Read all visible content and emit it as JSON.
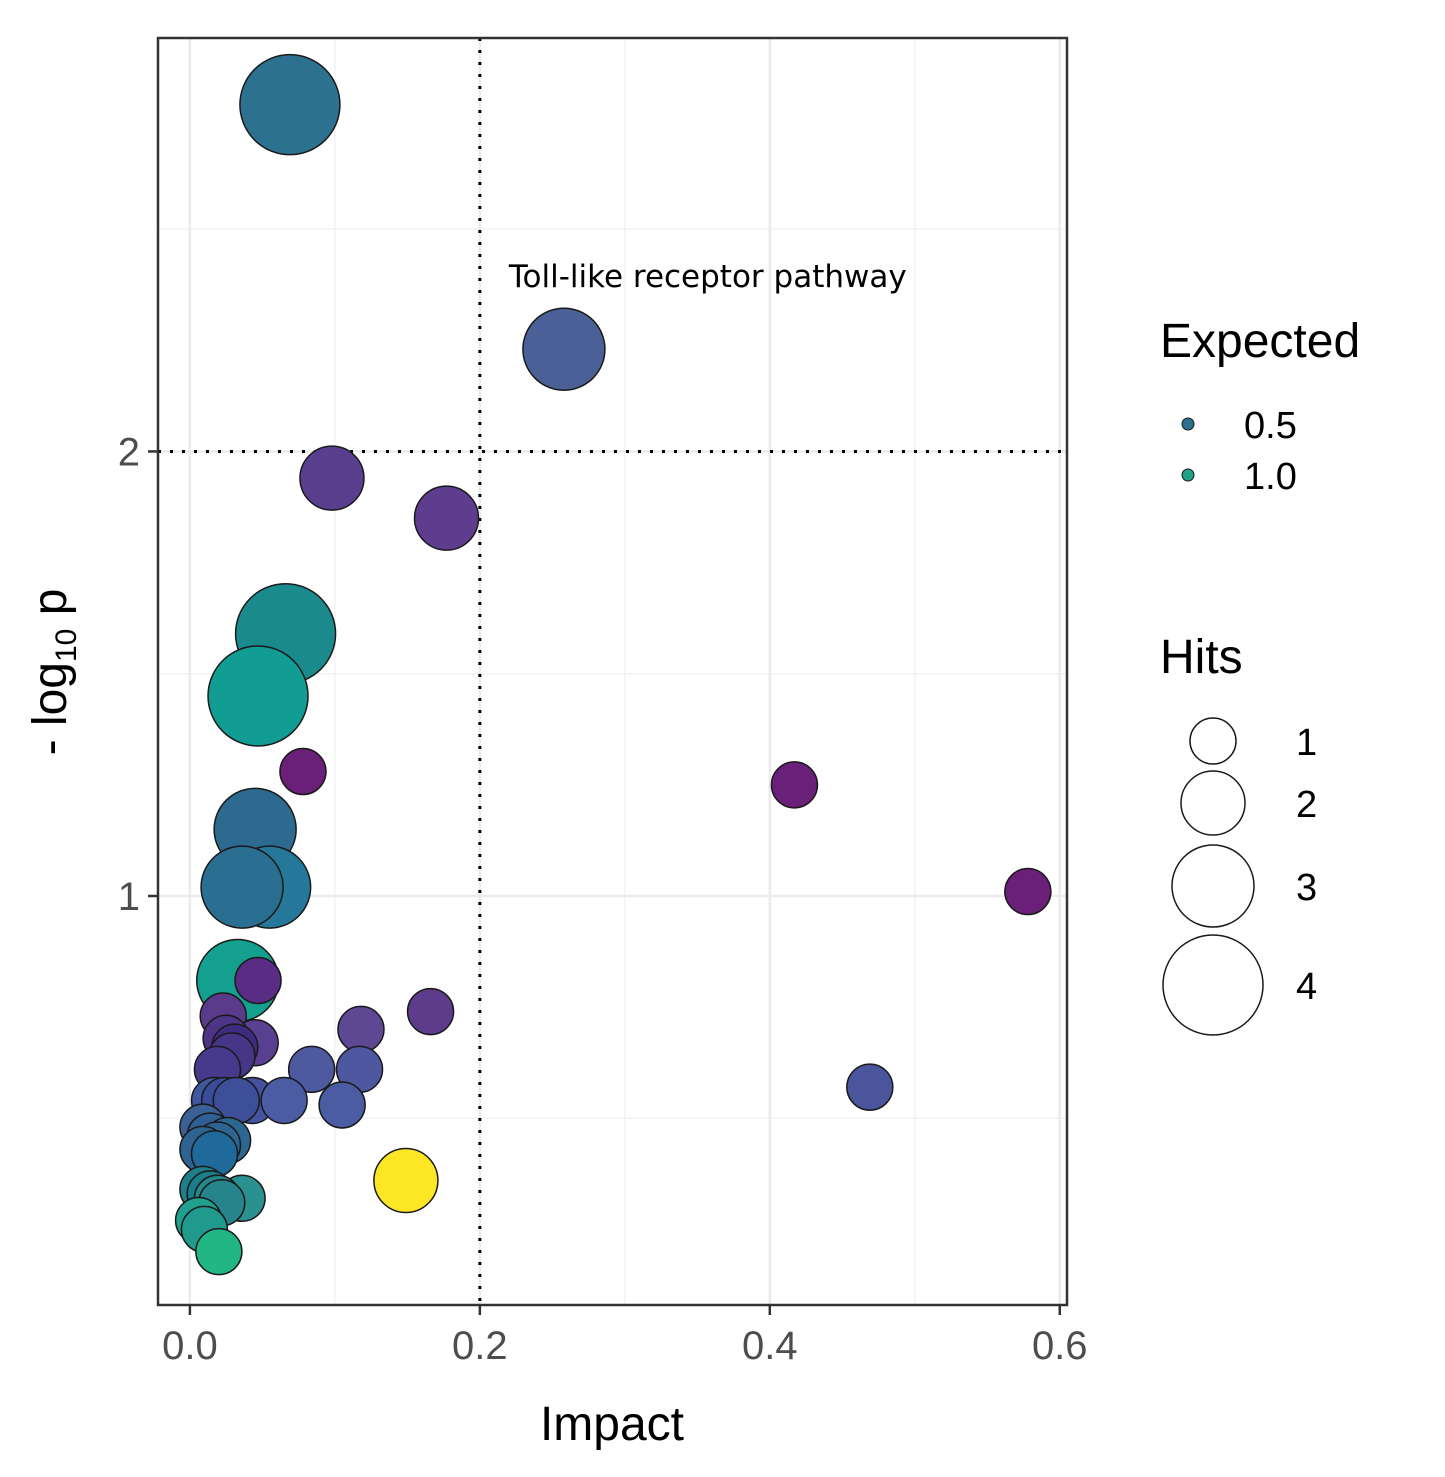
{
  "chart_data": {
    "type": "scatter",
    "xlabel": "Impact",
    "ylabel": {
      "prefix": "- log",
      "subscript": "10",
      "suffix": " p"
    },
    "xlim": [
      -0.022,
      0.605
    ],
    "ylim": [
      0.08,
      2.93
    ],
    "x_ticks": [
      0,
      0.2,
      0.4,
      0.6
    ],
    "x_tick_labels": [
      "0.0",
      "0.2",
      "0.4",
      "0.6"
    ],
    "x_minor_ticks": [
      0.1,
      0.3,
      0.5
    ],
    "y_ticks": [
      1,
      2
    ],
    "y_tick_labels": [
      "1",
      "2"
    ],
    "y_minor_ticks": [
      0.5,
      1.5,
      2.5
    ],
    "grid": true,
    "reference_lines": {
      "x": 0.2,
      "y": 2
    },
    "annotation": {
      "text": "Toll-like receptor pathway",
      "x": 0.22,
      "y": 2.37
    },
    "legend": {
      "position": "right",
      "color": {
        "title": "Expected",
        "entries": [
          {
            "label": "0.5",
            "color": "#2e6e8e"
          },
          {
            "label": "1.0",
            "color": "#1fa187"
          }
        ]
      },
      "size": {
        "title": "Hits",
        "entries": [
          {
            "label": "1",
            "value": 1
          },
          {
            "label": "2",
            "value": 2
          },
          {
            "label": "3",
            "value": 3
          },
          {
            "label": "4",
            "value": 4
          }
        ]
      }
    },
    "points": [
      {
        "x": 0.069,
        "y": 2.78,
        "hits": 4,
        "color": "#2d7191"
      },
      {
        "x": 0.258,
        "y": 2.23,
        "hits": 3,
        "color": "#4a6096"
      },
      {
        "x": 0.098,
        "y": 1.94,
        "hits": 2,
        "color": "#5b3f8f"
      },
      {
        "x": 0.177,
        "y": 1.85,
        "hits": 2,
        "color": "#5e3d8e"
      },
      {
        "x": 0.066,
        "y": 1.59,
        "hits": 4,
        "color": "#1a8a8c"
      },
      {
        "x": 0.047,
        "y": 1.45,
        "hits": 4,
        "color": "#119c94"
      },
      {
        "x": 0.078,
        "y": 1.28,
        "hits": 1,
        "color": "#6a1f78"
      },
      {
        "x": 0.417,
        "y": 1.25,
        "hits": 1,
        "color": "#6a1f78"
      },
      {
        "x": 0.045,
        "y": 1.15,
        "hits": 3,
        "color": "#2d6a90"
      },
      {
        "x": 0.055,
        "y": 1.02,
        "hits": 3,
        "color": "#26789a"
      },
      {
        "x": 0.036,
        "y": 1.02,
        "hits": 3,
        "color": "#2a6f92"
      },
      {
        "x": 0.578,
        "y": 1.01,
        "hits": 1,
        "color": "#6a1f78"
      },
      {
        "x": 0.047,
        "y": 0.81,
        "hits": 1,
        "color": "#5a2d84"
      },
      {
        "x": 0.033,
        "y": 0.81,
        "hits": 3,
        "color": "#13a08f"
      },
      {
        "x": 0.166,
        "y": 0.74,
        "hits": 1,
        "color": "#5d3c8c"
      },
      {
        "x": 0.023,
        "y": 0.73,
        "hits": 1,
        "color": "#5a3a8a"
      },
      {
        "x": 0.118,
        "y": 0.7,
        "hits": 1,
        "color": "#5e4894"
      },
      {
        "x": 0.045,
        "y": 0.67,
        "hits": 1,
        "color": "#5a4090"
      },
      {
        "x": 0.025,
        "y": 0.68,
        "hits": 1,
        "color": "#4e3486"
      },
      {
        "x": 0.031,
        "y": 0.66,
        "hits": 1,
        "color": "#3e2b80"
      },
      {
        "x": 0.029,
        "y": 0.64,
        "hits": 1,
        "color": "#453687"
      },
      {
        "x": 0.084,
        "y": 0.61,
        "hits": 1,
        "color": "#4e5aa0"
      },
      {
        "x": 0.117,
        "y": 0.61,
        "hits": 1,
        "color": "#4d58a0"
      },
      {
        "x": 0.019,
        "y": 0.61,
        "hits": 1,
        "color": "#473a8c"
      },
      {
        "x": 0.469,
        "y": 0.57,
        "hits": 1,
        "color": "#4b559b"
      },
      {
        "x": 0.043,
        "y": 0.54,
        "hits": 1,
        "color": "#4552a0"
      },
      {
        "x": 0.065,
        "y": 0.54,
        "hits": 1,
        "color": "#4b5ca2"
      },
      {
        "x": 0.105,
        "y": 0.53,
        "hits": 1,
        "color": "#4b5ca2"
      },
      {
        "x": 0.017,
        "y": 0.54,
        "hits": 1,
        "color": "#3f58a0"
      },
      {
        "x": 0.024,
        "y": 0.54,
        "hits": 1,
        "color": "#3a4d98"
      },
      {
        "x": 0.032,
        "y": 0.54,
        "hits": 1,
        "color": "#3e4f9a"
      },
      {
        "x": 0.009,
        "y": 0.48,
        "hits": 1,
        "color": "#3a6096"
      },
      {
        "x": 0.014,
        "y": 0.46,
        "hits": 1,
        "color": "#2f5f94"
      },
      {
        "x": 0.026,
        "y": 0.45,
        "hits": 1,
        "color": "#2e6692"
      },
      {
        "x": 0.019,
        "y": 0.44,
        "hits": 1,
        "color": "#2d6491"
      },
      {
        "x": 0.009,
        "y": 0.43,
        "hits": 1,
        "color": "#2e6290"
      },
      {
        "x": 0.017,
        "y": 0.42,
        "hits": 1,
        "color": "#1f6a9a"
      },
      {
        "x": 0.149,
        "y": 0.36,
        "hits": 2,
        "color": "#fde725"
      },
      {
        "x": 0.009,
        "y": 0.34,
        "hits": 1,
        "color": "#1e7e8a"
      },
      {
        "x": 0.014,
        "y": 0.33,
        "hits": 1,
        "color": "#1b7d8a"
      },
      {
        "x": 0.036,
        "y": 0.32,
        "hits": 1,
        "color": "#2a9090"
      },
      {
        "x": 0.019,
        "y": 0.32,
        "hits": 1,
        "color": "#24878d"
      },
      {
        "x": 0.022,
        "y": 0.31,
        "hits": 1,
        "color": "#27838c"
      },
      {
        "x": 0.006,
        "y": 0.27,
        "hits": 1,
        "color": "#20a08f"
      },
      {
        "x": 0.01,
        "y": 0.25,
        "hits": 1,
        "color": "#1f9a8d"
      },
      {
        "x": 0.02,
        "y": 0.2,
        "hits": 1,
        "color": "#22b684"
      }
    ]
  }
}
